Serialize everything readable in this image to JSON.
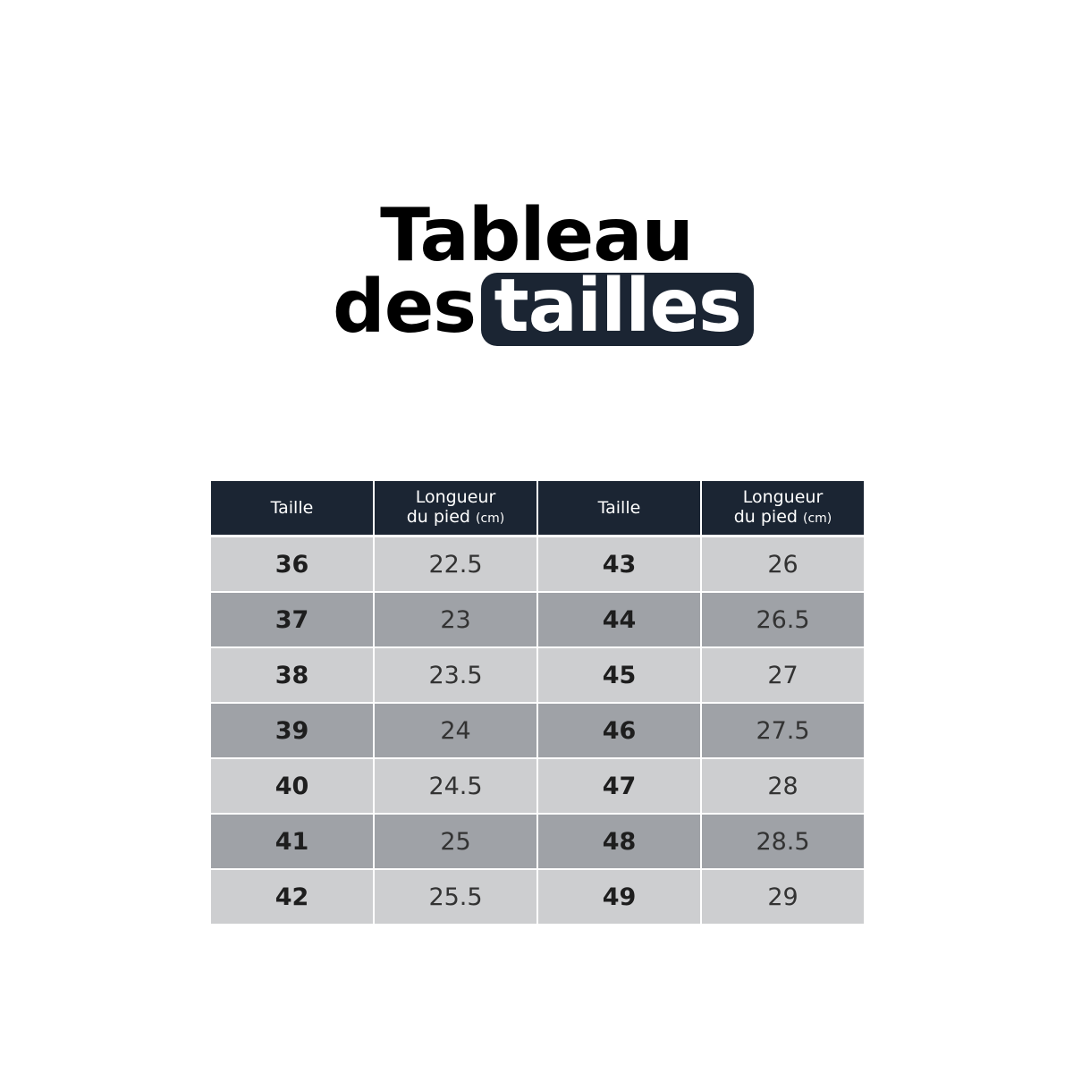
{
  "title": {
    "line1": "Tableau",
    "line2_plain": "des",
    "line2_highlight": "tailles"
  },
  "table": {
    "headers": [
      {
        "main": "Taille",
        "unit": ""
      },
      {
        "main": "Longueur",
        "main2": "du pied",
        "unit": "(cm)"
      },
      {
        "main": "Taille",
        "unit": ""
      },
      {
        "main": "Longueur",
        "main2": "du pied",
        "unit": "(cm)"
      }
    ],
    "rows": [
      [
        "36",
        "22.5",
        "43",
        "26"
      ],
      [
        "37",
        "23",
        "44",
        "26.5"
      ],
      [
        "38",
        "23.5",
        "45",
        "27"
      ],
      [
        "39",
        "24",
        "46",
        "27.5"
      ],
      [
        "40",
        "24.5",
        "47",
        "28"
      ],
      [
        "41",
        "25",
        "48",
        "28.5"
      ],
      [
        "42",
        "25.5",
        "49",
        "29"
      ]
    ]
  },
  "colors": {
    "header": "#1b2533",
    "row_light": "#cdced0",
    "row_dark": "#9fa2a7"
  }
}
